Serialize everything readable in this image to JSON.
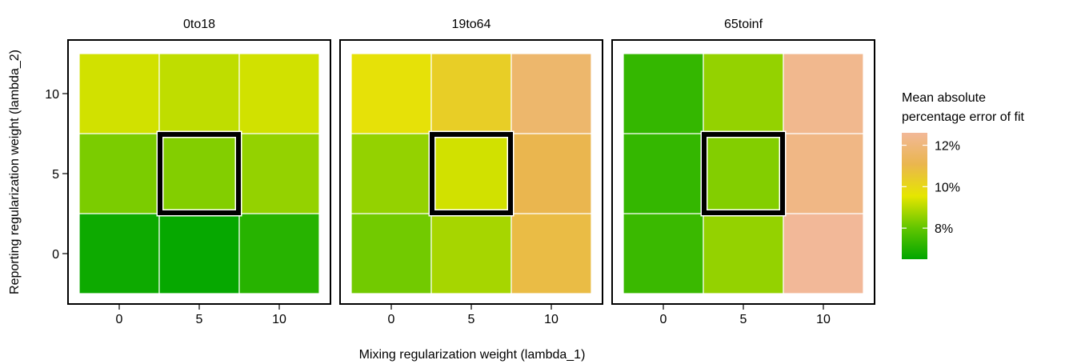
{
  "chart_data": {
    "type": "heatmap",
    "xlabel": "Mixing regularization weight (lambda_1)",
    "ylabel": "Reporting regularization weight (lambda_2)",
    "x_values": [
      0,
      5,
      10
    ],
    "y_values": [
      0,
      5,
      10
    ],
    "x_ticks": [
      0,
      5,
      10
    ],
    "y_ticks": [
      0,
      5,
      10
    ],
    "xlim": [
      -2.5,
      12.5
    ],
    "ylim": [
      -2.5,
      12.5
    ],
    "grid": false,
    "highlight_cell": {
      "x": 5,
      "y": 5
    },
    "panels": [
      {
        "name": "0to18",
        "z": [
          [
            6.7,
            6.6,
            7.1
          ],
          [
            8.3,
            8.4,
            8.6
          ],
          [
            9.3,
            9.1,
            9.3
          ]
        ]
      },
      {
        "name": "19to64",
        "z": [
          [
            8.2,
            8.8,
            10.9
          ],
          [
            8.6,
            9.3,
            11.1
          ],
          [
            9.7,
            10.3,
            11.7
          ]
        ]
      },
      {
        "name": "65toinf",
        "z": [
          [
            7.4,
            8.6,
            12.6
          ],
          [
            7.3,
            8.4,
            12.2
          ],
          [
            7.3,
            8.6,
            12.4
          ]
        ]
      }
    ],
    "legend": {
      "title_lines": [
        "Mean absolute",
        "percentage error of fit"
      ],
      "min": 6.5,
      "max": 12.6,
      "ticks": [
        8,
        10,
        12
      ],
      "tick_labels": [
        "8%",
        "10%",
        "12%"
      ],
      "placement": "right"
    }
  },
  "colors": {
    "scale": [
      "#00a600",
      "#63c600",
      "#e6e600",
      "#eab64e",
      "#f2b898"
    ],
    "highlight": "#000000",
    "panel_border": "#000000",
    "cell_gap": "#ffffff"
  }
}
